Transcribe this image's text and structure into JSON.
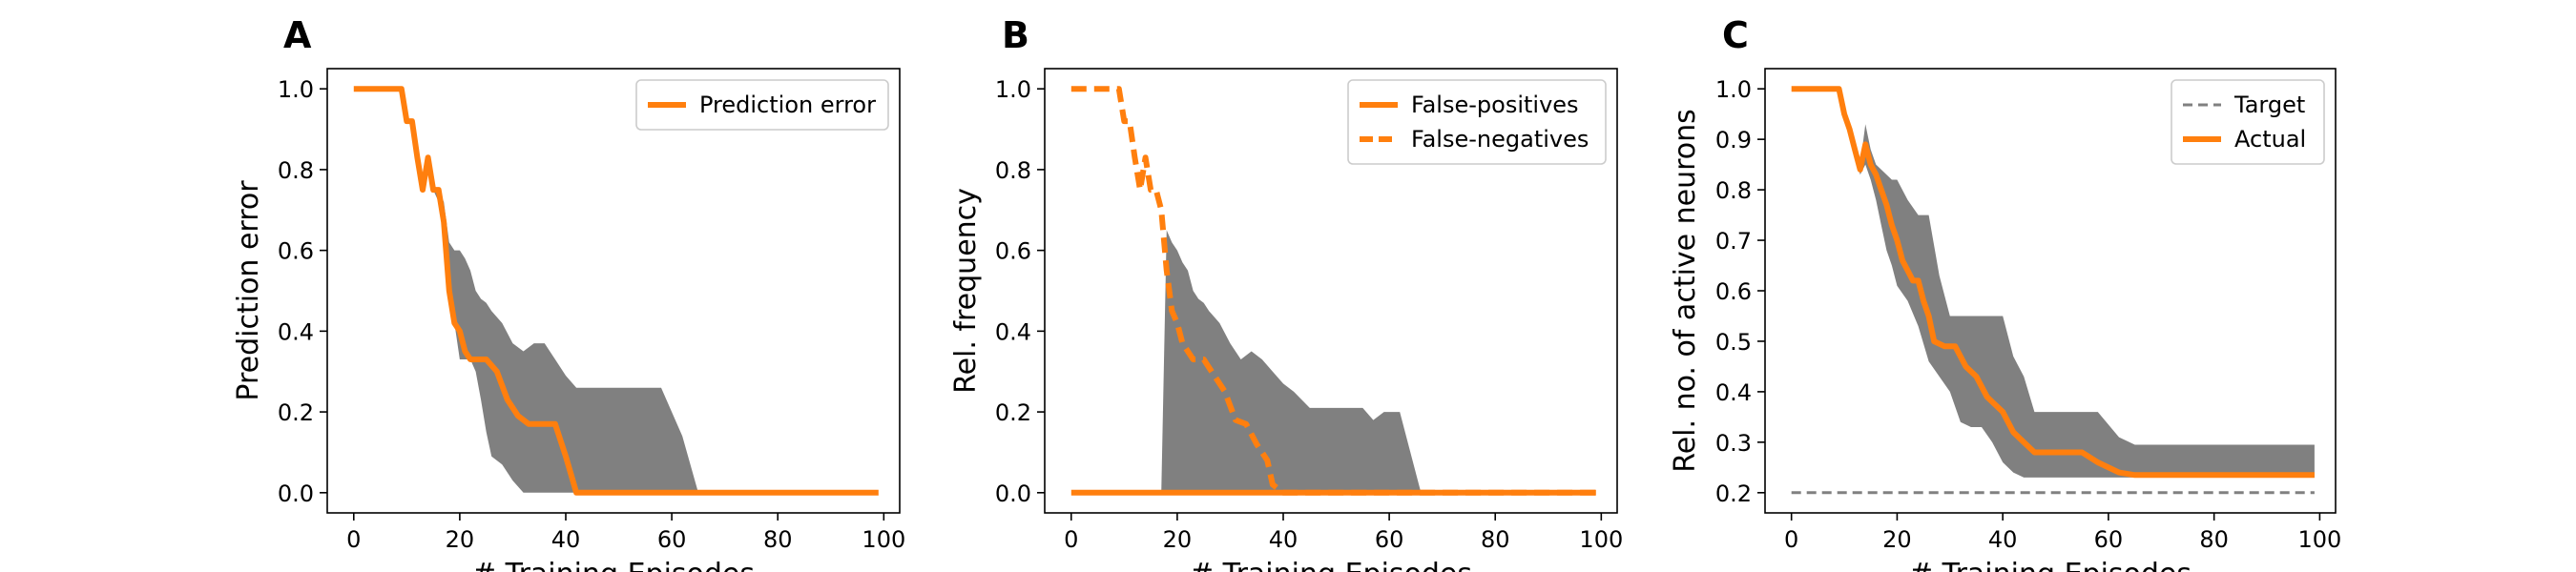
{
  "chart_data": [
    {
      "panel": "A",
      "type": "line",
      "xlabel": "# Training Episodes",
      "ylabel": "Prediction error",
      "xlim": [
        -5,
        103
      ],
      "ylim": [
        -0.05,
        1.05
      ],
      "xticks": [
        0,
        20,
        40,
        60,
        80,
        100
      ],
      "yticks": [
        0.0,
        0.2,
        0.4,
        0.6,
        0.8,
        1.0
      ],
      "ytick_labels": [
        "0.0",
        "0.2",
        "0.4",
        "0.6",
        "0.8",
        "1.0"
      ],
      "legend_position": "top-right",
      "band": {
        "color": "#808080",
        "x": [
          0,
          9,
          10,
          11,
          12,
          13,
          14,
          15,
          16,
          17,
          18,
          19,
          20,
          21,
          22,
          23,
          24,
          25,
          26,
          28,
          30,
          32,
          34,
          36,
          38,
          40,
          42,
          43,
          45,
          50,
          55,
          58,
          62,
          65,
          70,
          80,
          90,
          99
        ],
        "upper": [
          1.0,
          1.0,
          0.92,
          0.92,
          0.85,
          0.75,
          0.83,
          0.75,
          0.75,
          0.72,
          0.62,
          0.6,
          0.6,
          0.58,
          0.55,
          0.5,
          0.48,
          0.47,
          0.45,
          0.42,
          0.37,
          0.35,
          0.37,
          0.37,
          0.33,
          0.29,
          0.26,
          0.26,
          0.26,
          0.26,
          0.26,
          0.26,
          0.14,
          0.0,
          0.0,
          0.0,
          0.0,
          0.0
        ],
        "lower": [
          1.0,
          1.0,
          0.92,
          0.92,
          0.85,
          0.75,
          0.83,
          0.75,
          0.72,
          0.68,
          0.52,
          0.42,
          0.33,
          0.33,
          0.33,
          0.3,
          0.23,
          0.15,
          0.09,
          0.07,
          0.03,
          0.0,
          0.0,
          0.0,
          0.0,
          0.0,
          0.0,
          0.0,
          0.0,
          0.0,
          0.0,
          0.0,
          0.0,
          0.0,
          0.0,
          0.0,
          0.0,
          0.0
        ]
      },
      "series": [
        {
          "name": "Prediction error",
          "color": "#ff7f0e",
          "dash": "solid",
          "x": [
            0,
            9,
            10,
            11,
            12,
            13,
            14,
            15,
            16,
            17,
            18,
            19,
            20,
            21,
            22,
            23,
            25,
            27,
            29,
            31,
            33,
            38,
            40,
            42,
            50,
            60,
            70,
            80,
            90,
            99
          ],
          "y": [
            1.0,
            1.0,
            0.92,
            0.92,
            0.83,
            0.75,
            0.83,
            0.75,
            0.75,
            0.67,
            0.5,
            0.42,
            0.4,
            0.35,
            0.33,
            0.33,
            0.33,
            0.3,
            0.23,
            0.19,
            0.17,
            0.17,
            0.09,
            0.0,
            0.0,
            0.0,
            0.0,
            0.0,
            0.0,
            0.0
          ]
        }
      ]
    },
    {
      "panel": "B",
      "type": "line",
      "xlabel": "# Training Episodes",
      "ylabel": "Rel. frequency",
      "xlim": [
        -5,
        103
      ],
      "ylim": [
        -0.05,
        1.05
      ],
      "xticks": [
        0,
        20,
        40,
        60,
        80,
        100
      ],
      "yticks": [
        0.0,
        0.2,
        0.4,
        0.6,
        0.8,
        1.0
      ],
      "ytick_labels": [
        "0.0",
        "0.2",
        "0.4",
        "0.6",
        "0.8",
        "1.0"
      ],
      "legend_position": "top-right",
      "band": {
        "color": "#808080",
        "x": [
          17,
          18,
          19,
          20,
          21,
          22,
          23,
          24,
          25,
          26,
          28,
          30,
          32,
          34,
          36,
          38,
          40,
          42,
          45,
          50,
          55,
          57,
          59,
          62,
          64,
          66,
          70,
          80,
          90,
          99
        ],
        "upper": [
          0.0,
          0.65,
          0.62,
          0.6,
          0.57,
          0.55,
          0.5,
          0.48,
          0.47,
          0.45,
          0.42,
          0.37,
          0.33,
          0.35,
          0.33,
          0.3,
          0.27,
          0.25,
          0.21,
          0.21,
          0.21,
          0.18,
          0.2,
          0.2,
          0.1,
          0.0,
          0.0,
          0.0,
          0.0,
          0.0
        ],
        "lower": [
          0.0,
          0.0,
          0.0,
          0.0,
          0.0,
          0.0,
          0.0,
          0.0,
          0.0,
          0.0,
          0.0,
          0.0,
          0.0,
          0.0,
          0.0,
          0.0,
          0.0,
          0.0,
          0.0,
          0.0,
          0.0,
          0.0,
          0.0,
          0.0,
          0.0,
          0.0,
          0.0,
          0.0,
          0.0,
          0.0
        ]
      },
      "series": [
        {
          "name": "False-positives",
          "color": "#ff7f0e",
          "dash": "solid",
          "x": [
            0,
            10,
            20,
            30,
            40,
            50,
            60,
            70,
            80,
            90,
            99
          ],
          "y": [
            0.0,
            0.0,
            0.0,
            0.0,
            0.0,
            0.0,
            0.0,
            0.0,
            0.0,
            0.0,
            0.0
          ]
        },
        {
          "name": "False-negatives",
          "color": "#ff7f0e",
          "dash": "dashed",
          "x": [
            0,
            9,
            10,
            11,
            12,
            13,
            14,
            15,
            16,
            17,
            18,
            19,
            20,
            21,
            22,
            23,
            24,
            25,
            26,
            27,
            29,
            31,
            33,
            35,
            37,
            38,
            40,
            42,
            50,
            60,
            70,
            80,
            90,
            99
          ],
          "y": [
            1.0,
            1.0,
            0.92,
            0.92,
            0.83,
            0.75,
            0.83,
            0.75,
            0.75,
            0.7,
            0.55,
            0.45,
            0.42,
            0.37,
            0.35,
            0.33,
            0.33,
            0.33,
            0.31,
            0.29,
            0.25,
            0.18,
            0.17,
            0.12,
            0.08,
            0.02,
            0.0,
            0.0,
            0.0,
            0.0,
            0.0,
            0.0,
            0.0,
            0.0
          ]
        }
      ]
    },
    {
      "panel": "C",
      "type": "line",
      "xlabel": "# Training Episodes",
      "ylabel": "Rel. no. of active neurons",
      "xlim": [
        -5,
        103
      ],
      "ylim": [
        0.16,
        1.04
      ],
      "xticks": [
        0,
        20,
        40,
        60,
        80,
        100
      ],
      "yticks": [
        0.2,
        0.3,
        0.4,
        0.5,
        0.6,
        0.7,
        0.8,
        0.9,
        1.0
      ],
      "ytick_labels": [
        "0.2",
        "0.3",
        "0.4",
        "0.5",
        "0.6",
        "0.7",
        "0.8",
        "0.9",
        "1.0"
      ],
      "legend_position": "top-right",
      "band": {
        "color": "#808080",
        "x": [
          0,
          9,
          10,
          11,
          12,
          13,
          14,
          15,
          16,
          17,
          18,
          19,
          20,
          22,
          24,
          26,
          28,
          30,
          32,
          34,
          36,
          38,
          40,
          42,
          44,
          46,
          50,
          55,
          58,
          62,
          65,
          70,
          80,
          90,
          99
        ],
        "upper": [
          1.0,
          1.0,
          0.95,
          0.92,
          0.9,
          0.85,
          0.93,
          0.88,
          0.85,
          0.84,
          0.83,
          0.82,
          0.82,
          0.78,
          0.75,
          0.75,
          0.63,
          0.55,
          0.55,
          0.55,
          0.55,
          0.55,
          0.55,
          0.47,
          0.43,
          0.36,
          0.36,
          0.36,
          0.36,
          0.31,
          0.295,
          0.295,
          0.295,
          0.295,
          0.295
        ],
        "lower": [
          1.0,
          1.0,
          0.95,
          0.92,
          0.88,
          0.83,
          0.85,
          0.82,
          0.78,
          0.73,
          0.68,
          0.65,
          0.61,
          0.58,
          0.53,
          0.46,
          0.43,
          0.4,
          0.34,
          0.33,
          0.33,
          0.3,
          0.26,
          0.24,
          0.23,
          0.23,
          0.23,
          0.23,
          0.23,
          0.23,
          0.23,
          0.23,
          0.23,
          0.23,
          0.23
        ]
      },
      "series": [
        {
          "name": "Target",
          "color": "#808080",
          "dash": "dashed",
          "x": [
            0,
            99
          ],
          "y": [
            0.2,
            0.2
          ]
        },
        {
          "name": "Actual",
          "color": "#ff7f0e",
          "dash": "solid",
          "x": [
            0,
            9,
            10,
            11,
            12,
            13,
            14,
            15,
            16,
            17,
            18,
            19,
            20,
            21,
            22,
            23,
            24,
            25,
            26,
            27,
            29,
            31,
            33,
            35,
            37,
            38,
            40,
            42,
            44,
            46,
            48,
            50,
            55,
            58,
            62,
            65,
            70,
            80,
            90,
            99
          ],
          "y": [
            1.0,
            1.0,
            0.95,
            0.92,
            0.88,
            0.84,
            0.89,
            0.85,
            0.83,
            0.8,
            0.77,
            0.73,
            0.7,
            0.66,
            0.64,
            0.62,
            0.62,
            0.58,
            0.55,
            0.5,
            0.49,
            0.49,
            0.45,
            0.43,
            0.39,
            0.38,
            0.36,
            0.32,
            0.3,
            0.28,
            0.28,
            0.28,
            0.28,
            0.26,
            0.24,
            0.235,
            0.235,
            0.235,
            0.235,
            0.235
          ]
        }
      ]
    }
  ]
}
